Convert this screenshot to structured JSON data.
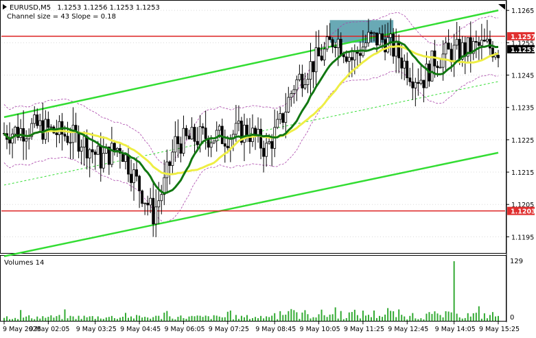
{
  "header": {
    "symbol": "EURUSD,M5",
    "ohlc": "1.1253 1.1256 1.1253 1.1253",
    "channel_info": "Channel size = 43 Slope = 0.18"
  },
  "volume_panel": {
    "title": "Volumes 14",
    "max_label": "129",
    "min_label": "0"
  },
  "price_badges": [
    {
      "label": "1.1257",
      "price": 1.1257,
      "bg": "#e03030",
      "fg": "#ffffff"
    },
    {
      "label": "1.1253",
      "price": 1.1253,
      "bg": "#000000",
      "fg": "#ffffff"
    },
    {
      "label": "1.1203",
      "price": 1.1203,
      "bg": "#e03030",
      "fg": "#ffffff"
    }
  ],
  "colors": {
    "channel": "#33dd33",
    "ma_dark": "#117711",
    "ma_yellow": "#eeee44",
    "envelope": "#aa44aa",
    "support_resistance": "#dd2222",
    "highlight_box": "#4f9aa8",
    "candle": "#000000",
    "volume": "#33aa33"
  },
  "chart_data": {
    "type": "candlestick",
    "y_ticks": [
      1.1265,
      1.1255,
      1.1245,
      1.1235,
      1.1225,
      1.1215,
      1.1205,
      1.1195
    ],
    "y_tick_labels": [
      "1.1265",
      "1.1255",
      "1.1245",
      "1.1235",
      "1.1225",
      "1.1215",
      "1.1205",
      "1.1195"
    ],
    "x_tick_labels": [
      "9 May 2025",
      "9 May 02:05",
      "9 May 03:25",
      "9 May 04:45",
      "9 May 06:05",
      "9 May 07:25",
      "9 May 08:45",
      "9 May 10:05",
      "9 May 11:25",
      "9 May 12:45",
      "9 May 14:05",
      "9 May 15:25"
    ],
    "horizontal_levels": [
      1.1257,
      1.1203
    ],
    "highlight_zone": {
      "x_from_bar": 118,
      "x_to_bar": 141,
      "price_from": 1.1255,
      "price_to": 1.1262
    },
    "channel_upper": [
      {
        "bar": 0,
        "price": 1.1232
      },
      {
        "bar": 179,
        "price": 1.1265
      }
    ],
    "channel_lower": [
      {
        "bar": 0,
        "price": 1.1189
      },
      {
        "bar": 179,
        "price": 1.1221
      }
    ],
    "channel_mid": [
      {
        "bar": 0,
        "price": 1.1211
      },
      {
        "bar": 179,
        "price": 1.1243
      }
    ],
    "volume_ylim": [
      0,
      129
    ],
    "volume_spike": {
      "bar": 163,
      "value": 129
    },
    "bar_count": 180,
    "price_ylim": [
      1.119,
      1.1268
    ]
  }
}
